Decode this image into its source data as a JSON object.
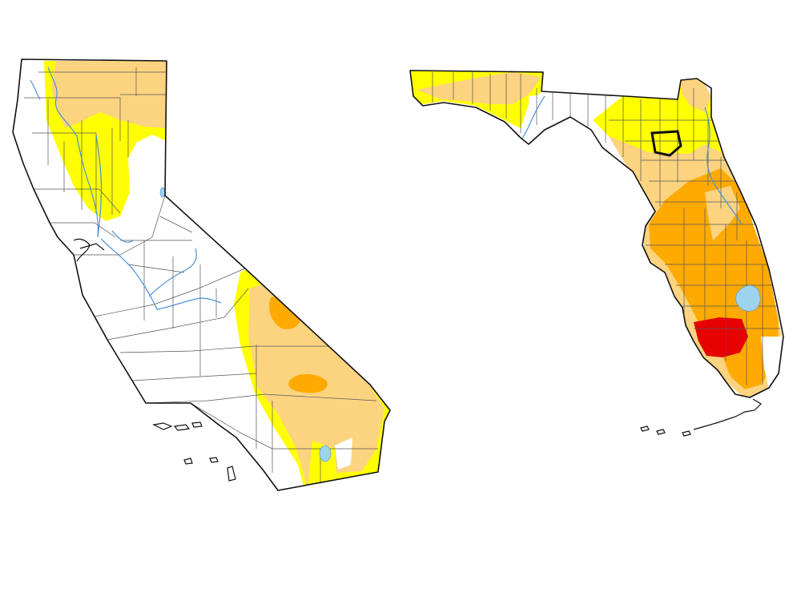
{
  "legend_colors": {
    "d0_abnormally_dry": "#ffff00",
    "d1_moderate": "#fcd37f",
    "d2_severe": "#ffaa00",
    "d3_extreme": "#e60000",
    "water": "#9ed3ee",
    "outline": "#111111",
    "county_line": "#555555"
  },
  "maps": [
    {
      "name": "california-drought-map",
      "category": "state-map"
    },
    {
      "name": "florida-drought-map",
      "category": "state-map"
    }
  ]
}
